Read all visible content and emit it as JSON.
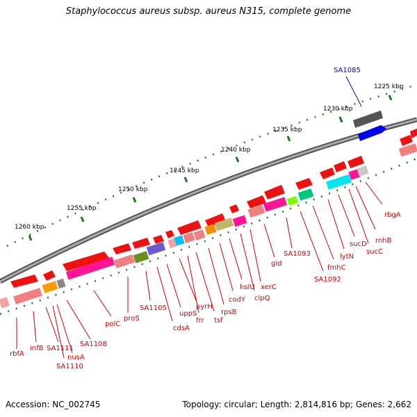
{
  "title": "Staphylococcus aureus subsp. aureus N315, complete genome",
  "footer": {
    "accession": "Accession: NC_002745",
    "summary": "Topology: circular; Length: 2,814,816 bp; Genes: 2,662"
  },
  "kbp_labels": [
    "1225 kbp",
    "1230 kbp",
    "1235 kbp",
    "1240 kbp",
    "1245 kbp",
    "1250 kbp",
    "1255 kbp",
    "1260 kbp"
  ],
  "highlight_gene": "SA1085",
  "gene_labels": [
    "rbgA",
    "rnhB",
    "sucC",
    "sucD",
    "lytN",
    "fmhC",
    "SA1092",
    "SA1093",
    "gid",
    "xerC",
    "clpQ",
    "hslU",
    "codY",
    "rpsB",
    "tsf",
    "frr",
    "pyrH",
    "uppS",
    "cdsA",
    "SA1105",
    "proS",
    "polC",
    "SA1108",
    "nusA",
    "SA1110",
    "SA1111",
    "infB",
    "rbfA"
  ],
  "colors": {
    "gene_red": "#ff0000",
    "label_red": "#cc0000",
    "highlight_blue": "#0000ff",
    "backbone": "#808080",
    "tick_green": "#1a7a1a"
  }
}
